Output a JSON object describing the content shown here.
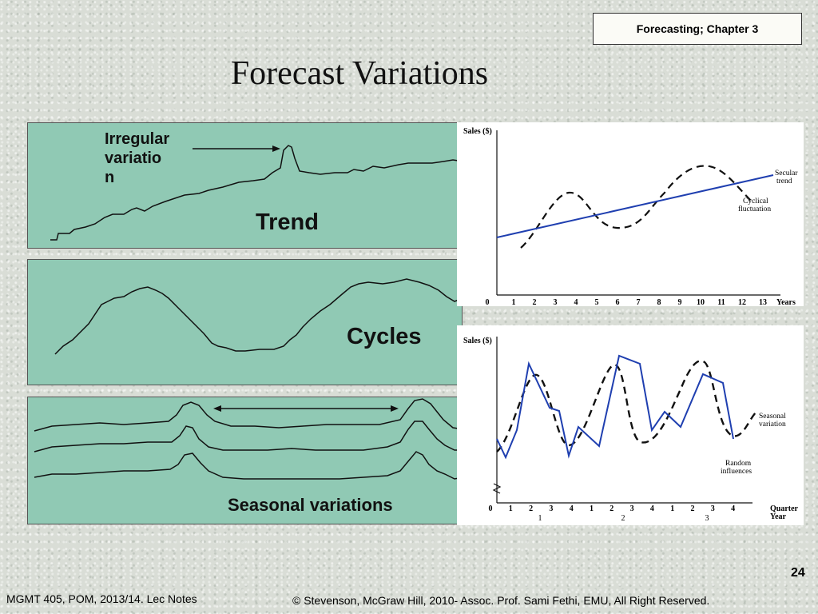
{
  "header": {
    "chapter": "Forecasting; Chapter 3",
    "title": "Forecast Variations"
  },
  "panels": {
    "trend": {
      "label": "Trend",
      "annotation_lines": [
        "Irregular",
        "variatio",
        "n"
      ]
    },
    "cycles": {
      "label": "Cycles"
    },
    "seasonal": {
      "label": "Seasonal variations"
    }
  },
  "chart_data": [
    {
      "type": "line",
      "ylabel": "Sales ($)",
      "xlabel": "Years",
      "x_ticks": [
        "0",
        "1",
        "2",
        "3",
        "4",
        "5",
        "6",
        "7",
        "8",
        "9",
        "10",
        "11",
        "12",
        "13"
      ],
      "annotations": [
        "Secular trend",
        "Cyclical fluctuation"
      ],
      "series": [
        {
          "name": "Secular trend",
          "style": "solid",
          "color": "#1f3fb0"
        },
        {
          "name": "Cyclical fluctuation",
          "style": "dashed",
          "color": "#111111"
        }
      ]
    },
    {
      "type": "line",
      "ylabel": "Sales ($)",
      "xlabel": "Quarter Year",
      "x_ticks": [
        "0",
        "1",
        "2",
        "3",
        "4",
        "1",
        "2",
        "3",
        "4",
        "1",
        "2",
        "3",
        "4"
      ],
      "year_labels": [
        "1",
        "2",
        "3"
      ],
      "annotations": [
        "Seasonal variation",
        "Random influences"
      ],
      "series": [
        {
          "name": "Random influences",
          "style": "solid",
          "color": "#1f3fb0"
        },
        {
          "name": "Seasonal variation",
          "style": "dashed",
          "color": "#111111"
        }
      ]
    }
  ],
  "footer": {
    "page_number": "24",
    "left": "MGMT 405, POM, 2013/14. Lec Notes",
    "right": "© Stevenson, McGraw Hill, 2010- Assoc. Prof. Sami Fethi, EMU, All Right Reserved."
  }
}
